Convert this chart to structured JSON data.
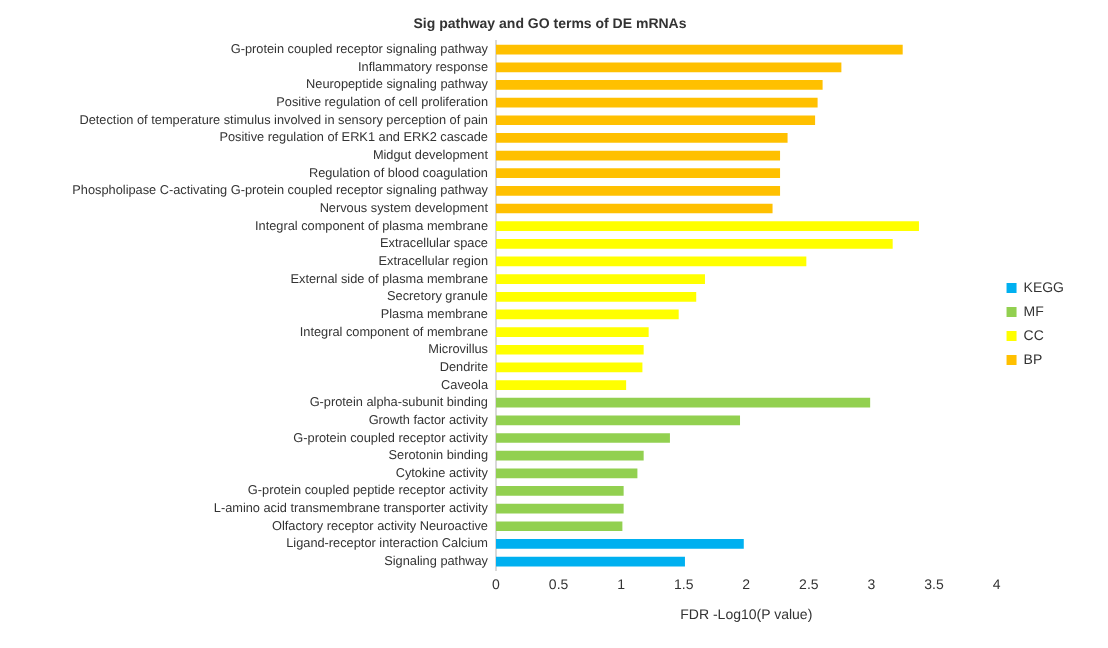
{
  "chart_data": {
    "type": "bar",
    "orientation": "horizontal",
    "title": "Sig pathway and GO terms of DE mRNAs",
    "xlabel": "FDR -Log10(P value)",
    "categories": [
      "G-protein coupled receptor signaling pathway",
      "Inflammatory response",
      "Neuropeptide signaling pathway",
      "Positive regulation of cell proliferation",
      "Detection of temperature stimulus involved in sensory perception of pain",
      "Positive regulation of ERK1 and ERK2 cascade",
      "Midgut development",
      "Regulation of blood coagulation",
      "Phospholipase C-activating G-protein coupled receptor signaling pathway",
      "Nervous system development",
      "Integral component of plasma membrane",
      "Extracellular space",
      "Extracellular region",
      "External side of plasma membrane",
      "Secretory granule",
      "Plasma membrane",
      "Integral component of membrane",
      "Microvillus",
      "Dendrite",
      "Caveola",
      "G-protein alpha-subunit binding",
      "Growth factor activity",
      "G-protein coupled receptor activity",
      "Serotonin binding",
      "Cytokine activity",
      "G-protein coupled peptide receptor activity",
      "L-amino acid transmembrane transporter activity",
      "Olfactory receptor activity Neuroactive",
      "Ligand-receptor interaction Calcium",
      "Signaling pathway"
    ],
    "series": [
      {
        "name": "KEGG",
        "color": "#00b0f0",
        "values": [
          null,
          null,
          null,
          null,
          null,
          null,
          null,
          null,
          null,
          null,
          null,
          null,
          null,
          null,
          null,
          null,
          null,
          null,
          null,
          null,
          null,
          null,
          null,
          null,
          null,
          null,
          null,
          null,
          1.98,
          1.51
        ]
      },
      {
        "name": "MF",
        "color": "#92d050",
        "values": [
          null,
          null,
          null,
          null,
          null,
          null,
          null,
          null,
          null,
          null,
          null,
          null,
          null,
          null,
          null,
          null,
          null,
          null,
          null,
          null,
          2.99,
          1.95,
          1.39,
          1.18,
          1.13,
          1.02,
          1.02,
          1.01,
          null,
          null
        ]
      },
      {
        "name": "CC",
        "color": "#ffff00",
        "values": [
          null,
          null,
          null,
          null,
          null,
          null,
          null,
          null,
          null,
          null,
          3.38,
          3.17,
          2.48,
          1.67,
          1.6,
          1.46,
          1.22,
          1.18,
          1.17,
          1.04,
          null,
          null,
          null,
          null,
          null,
          null,
          null,
          null,
          null,
          null
        ]
      },
      {
        "name": "BP",
        "color": "#ffc000",
        "values": [
          3.25,
          2.76,
          2.61,
          2.57,
          2.55,
          2.33,
          2.27,
          2.27,
          2.27,
          2.21,
          null,
          null,
          null,
          null,
          null,
          null,
          null,
          null,
          null,
          null,
          null,
          null,
          null,
          null,
          null,
          null,
          null,
          null,
          null,
          null
        ]
      }
    ],
    "xlim": [
      0,
      4
    ],
    "xticks": [
      0,
      0.5,
      1,
      1.5,
      2,
      2.5,
      3,
      3.5,
      4
    ],
    "grid": false,
    "legend": "right"
  }
}
